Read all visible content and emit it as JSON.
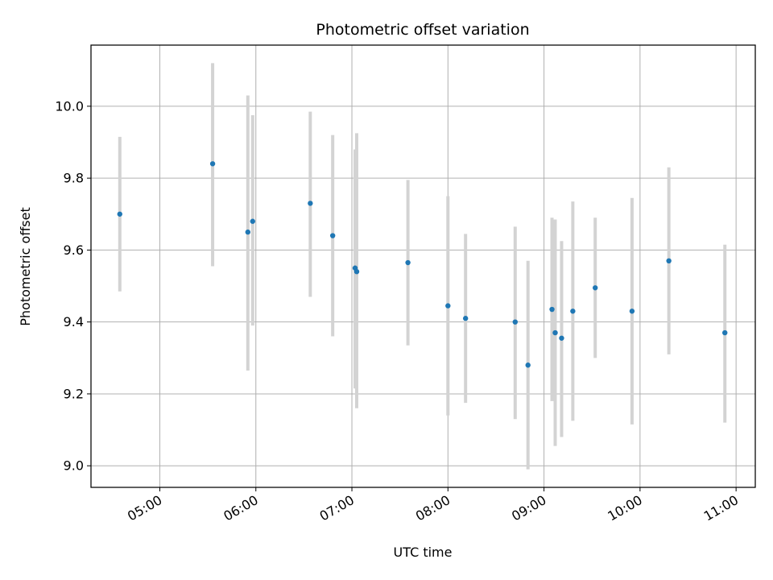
{
  "chart_data": {
    "type": "scatter",
    "title": "Photometric offset variation",
    "xlabel": "UTC time",
    "ylabel": "Photometric offset",
    "x_tick_labels": [
      "05:00",
      "06:00",
      "07:00",
      "08:00",
      "09:00",
      "10:00",
      "11:00"
    ],
    "x_ticks": [
      "05:00",
      "06:00",
      "07:00",
      "08:00",
      "09:00",
      "10:00",
      "11:00"
    ],
    "y_ticks": [
      9.0,
      9.2,
      9.4,
      9.6,
      9.8,
      10.0
    ],
    "y_tick_labels": [
      "9.0",
      "9.2",
      "9.4",
      "9.6",
      "9.8",
      "10.0"
    ],
    "xlim": [
      "04:17",
      "11:12"
    ],
    "ylim": [
      8.94,
      10.17
    ],
    "grid": true,
    "colors": {
      "point": "#1f77b4",
      "errorbar": "#d3d3d3",
      "grid": "#b0b0b0"
    },
    "points": [
      {
        "x": "04:35",
        "y": 9.7,
        "err_low": 9.485,
        "err_high": 9.915
      },
      {
        "x": "05:33",
        "y": 9.84,
        "err_low": 9.555,
        "err_high": 10.12
      },
      {
        "x": "05:55",
        "y": 9.65,
        "err_low": 9.265,
        "err_high": 10.03
      },
      {
        "x": "05:58",
        "y": 9.68,
        "err_low": 9.39,
        "err_high": 9.975
      },
      {
        "x": "06:34",
        "y": 9.73,
        "err_low": 9.47,
        "err_high": 9.985
      },
      {
        "x": "06:48",
        "y": 9.64,
        "err_low": 9.36,
        "err_high": 9.92
      },
      {
        "x": "07:02",
        "y": 9.55,
        "err_low": 9.215,
        "err_high": 9.88
      },
      {
        "x": "07:03",
        "y": 9.54,
        "err_low": 9.16,
        "err_high": 9.925
      },
      {
        "x": "07:35",
        "y": 9.565,
        "err_low": 9.335,
        "err_high": 9.795
      },
      {
        "x": "08:00",
        "y": 9.445,
        "err_low": 9.14,
        "err_high": 9.75
      },
      {
        "x": "08:11",
        "y": 9.41,
        "err_low": 9.175,
        "err_high": 9.645
      },
      {
        "x": "08:42",
        "y": 9.4,
        "err_low": 9.13,
        "err_high": 9.665
      },
      {
        "x": "08:50",
        "y": 9.28,
        "err_low": 8.99,
        "err_high": 9.57
      },
      {
        "x": "09:05",
        "y": 9.435,
        "err_low": 9.18,
        "err_high": 9.69
      },
      {
        "x": "09:07",
        "y": 9.37,
        "err_low": 9.055,
        "err_high": 9.685
      },
      {
        "x": "09:11",
        "y": 9.355,
        "err_low": 9.08,
        "err_high": 9.625
      },
      {
        "x": "09:18",
        "y": 9.43,
        "err_low": 9.125,
        "err_high": 9.735
      },
      {
        "x": "09:32",
        "y": 9.495,
        "err_low": 9.3,
        "err_high": 9.69
      },
      {
        "x": "09:55",
        "y": 9.43,
        "err_low": 9.115,
        "err_high": 9.745
      },
      {
        "x": "10:18",
        "y": 9.57,
        "err_low": 9.31,
        "err_high": 9.83
      },
      {
        "x": "10:53",
        "y": 9.37,
        "err_low": 9.12,
        "err_high": 9.615
      }
    ]
  }
}
